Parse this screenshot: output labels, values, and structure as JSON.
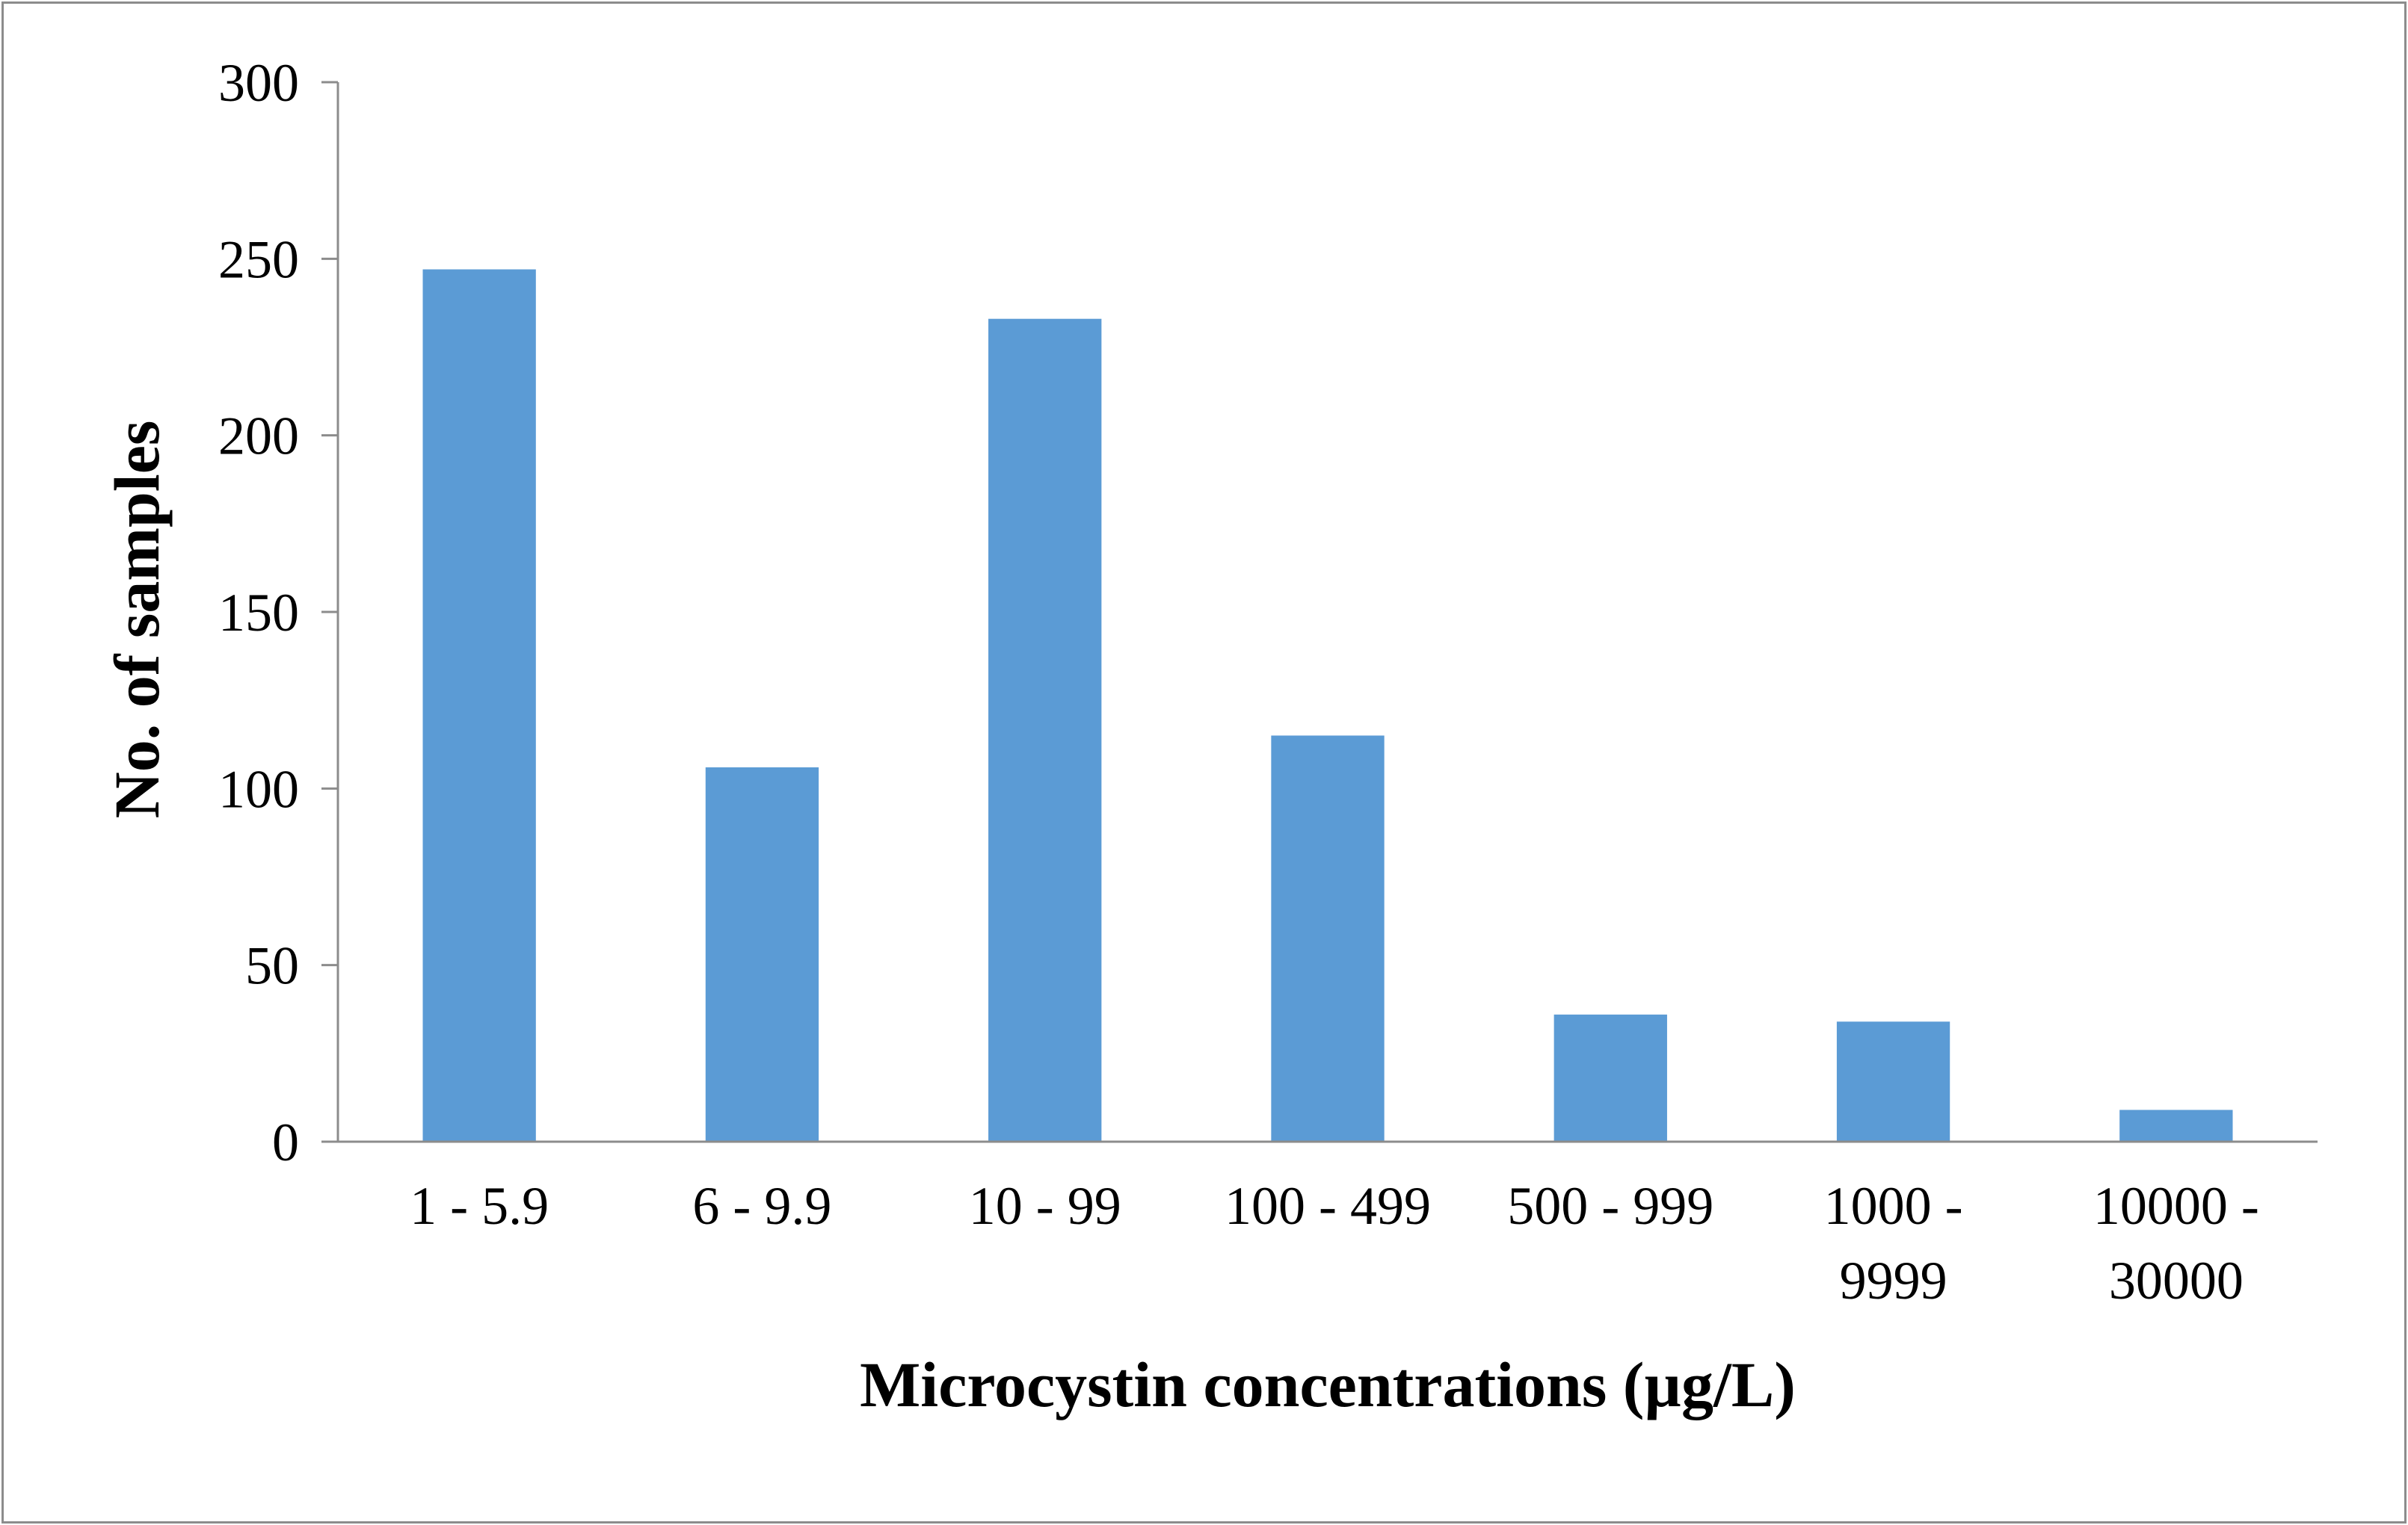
{
  "chart_data": {
    "type": "bar",
    "categories": [
      [
        "1 - 5.9"
      ],
      [
        "6 - 9.9"
      ],
      [
        "10 - 99"
      ],
      [
        "100 - 499"
      ],
      [
        "500 - 999"
      ],
      [
        "1000 -",
        "9999"
      ],
      [
        "10000 -",
        "30000"
      ]
    ],
    "values": [
      247,
      106,
      233,
      115,
      36,
      34,
      9
    ],
    "xlabel": "Microcystin concentrations (µg/L)",
    "ylabel": "No. of samples",
    "ylim": [
      0,
      300
    ],
    "yticks": [
      0,
      50,
      100,
      150,
      200,
      250,
      300
    ],
    "grid": false,
    "legend": "none",
    "bar_color": "#5b9bd5",
    "axis_color": "#8c8c8c"
  }
}
